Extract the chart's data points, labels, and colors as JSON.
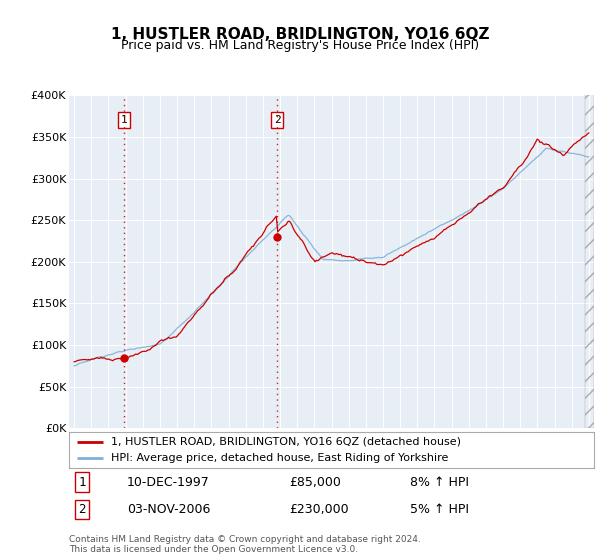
{
  "title": "1, HUSTLER ROAD, BRIDLINGTON, YO16 6QZ",
  "subtitle": "Price paid vs. HM Land Registry's House Price Index (HPI)",
  "legend_line1": "1, HUSTLER ROAD, BRIDLINGTON, YO16 6QZ (detached house)",
  "legend_line2": "HPI: Average price, detached house, East Riding of Yorkshire",
  "annotation1_label": "1",
  "annotation1_date": "10-DEC-1997",
  "annotation1_price": "£85,000",
  "annotation1_hpi": "8% ↑ HPI",
  "annotation1_year": 1997.92,
  "annotation1_value": 85000,
  "annotation2_label": "2",
  "annotation2_date": "03-NOV-2006",
  "annotation2_price": "£230,000",
  "annotation2_hpi": "5% ↑ HPI",
  "annotation2_year": 2006.84,
  "annotation2_value": 230000,
  "plot_bg_color": "#e8eef5",
  "line1_color": "#cc0000",
  "line2_color": "#7fb0d8",
  "grid_color": "#ffffff",
  "vline_color": "#cc0000",
  "ylim": [
    0,
    400000
  ],
  "yticks": [
    0,
    50000,
    100000,
    150000,
    200000,
    250000,
    300000,
    350000,
    400000
  ],
  "xlim_left": 1994.7,
  "xlim_right": 2025.3,
  "copyright_text": "Contains HM Land Registry data © Crown copyright and database right 2024.\nThis data is licensed under the Open Government Licence v3.0."
}
